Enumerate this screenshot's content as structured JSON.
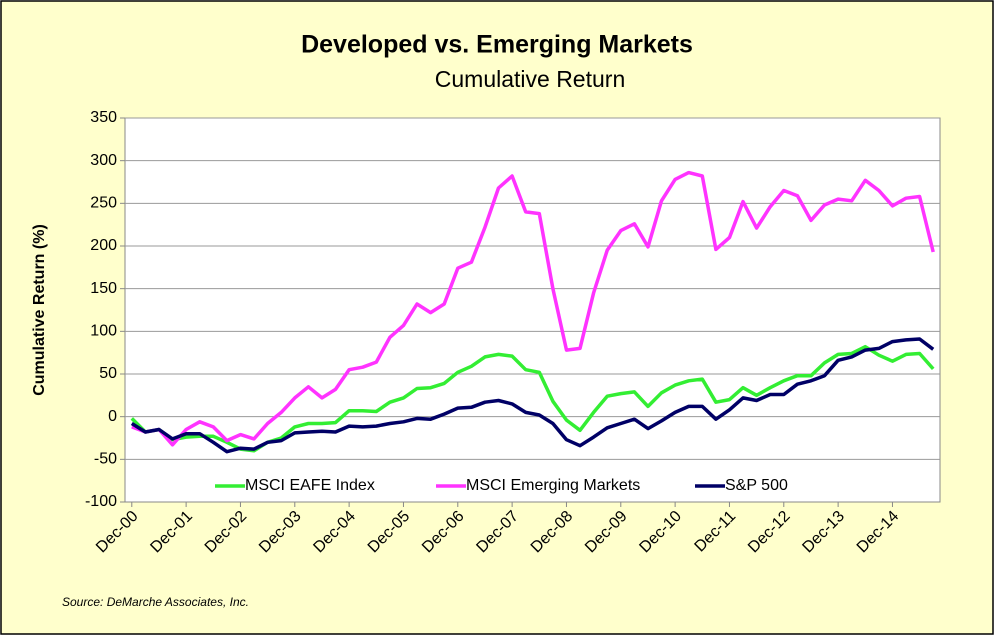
{
  "chart_data": {
    "type": "line",
    "title": "Developed vs. Emerging Markets",
    "subtitle": "Cumulative Return",
    "y_label": "Cumulative Return (%)",
    "source": "Source:  DeMarche Associates, Inc.",
    "categories": [
      "Dec-00",
      null,
      null,
      null,
      "Dec-01",
      null,
      null,
      null,
      "Dec-02",
      null,
      null,
      null,
      "Dec-03",
      null,
      null,
      null,
      "Dec-04",
      null,
      null,
      null,
      "Dec-05",
      null,
      null,
      null,
      "Dec-06",
      null,
      null,
      null,
      "Dec-07",
      null,
      null,
      null,
      "Dec-08",
      null,
      null,
      null,
      "Dec-09",
      null,
      null,
      null,
      "Dec-10",
      null,
      null,
      null,
      "Dec-11",
      null,
      null,
      null,
      "Dec-12",
      null,
      null,
      null,
      "Dec-13",
      null,
      null,
      null,
      "Dec-14",
      null,
      null,
      null
    ],
    "series": [
      {
        "name": "MSCI EAFE Index",
        "color": "#33ee33",
        "values": [
          -2,
          -18,
          -15,
          -27,
          -24,
          -23,
          -23,
          -30,
          -38,
          -40,
          -30,
          -25,
          -12,
          -8,
          -8,
          -7,
          7,
          7,
          6,
          17,
          22,
          33,
          34,
          39,
          52,
          59,
          70,
          73,
          71,
          55,
          52,
          18,
          -4,
          -16,
          5,
          24,
          27,
          29,
          12,
          28,
          37,
          42,
          44,
          17,
          20,
          34,
          25,
          34,
          42,
          48,
          48,
          63,
          73,
          74,
          82,
          72,
          65,
          73,
          74,
          56
        ]
      },
      {
        "name": "MSCI Emerging Markets",
        "color": "#ff33ff",
        "values": [
          -12,
          -18,
          -15,
          -33,
          -15,
          -6,
          -12,
          -28,
          -21,
          -26,
          -8,
          5,
          22,
          35,
          22,
          32,
          55,
          58,
          64,
          93,
          107,
          132,
          122,
          132,
          174,
          181,
          222,
          268,
          282,
          240,
          238,
          150,
          78,
          80,
          145,
          195,
          218,
          226,
          199,
          253,
          278,
          286,
          282,
          196,
          210,
          252,
          221,
          246,
          265,
          259,
          230,
          248,
          255,
          253,
          277,
          265,
          247,
          256,
          258,
          193
        ]
      },
      {
        "name": "S&P 500",
        "color": "#000066",
        "values": [
          -8,
          -18,
          -15,
          -26,
          -20,
          -20,
          -30,
          -41,
          -37,
          -38,
          -30,
          -28,
          -19,
          -18,
          -17,
          -18,
          -11,
          -12,
          -11,
          -8,
          -6,
          -2,
          -3,
          3,
          10,
          11,
          17,
          19,
          15,
          5,
          2,
          -8,
          -27,
          -34,
          -24,
          -13,
          -8,
          -3,
          -14,
          -5,
          5,
          12,
          12,
          -3,
          8,
          22,
          19,
          26,
          26,
          38,
          42,
          48,
          66,
          70,
          78,
          80,
          88,
          90,
          91,
          79
        ]
      }
    ],
    "ylim": [
      -100,
      350
    ],
    "yticks": [
      -100,
      -50,
      0,
      50,
      100,
      150,
      200,
      250,
      300,
      350
    ],
    "grid": true,
    "legend": "bottom"
  }
}
